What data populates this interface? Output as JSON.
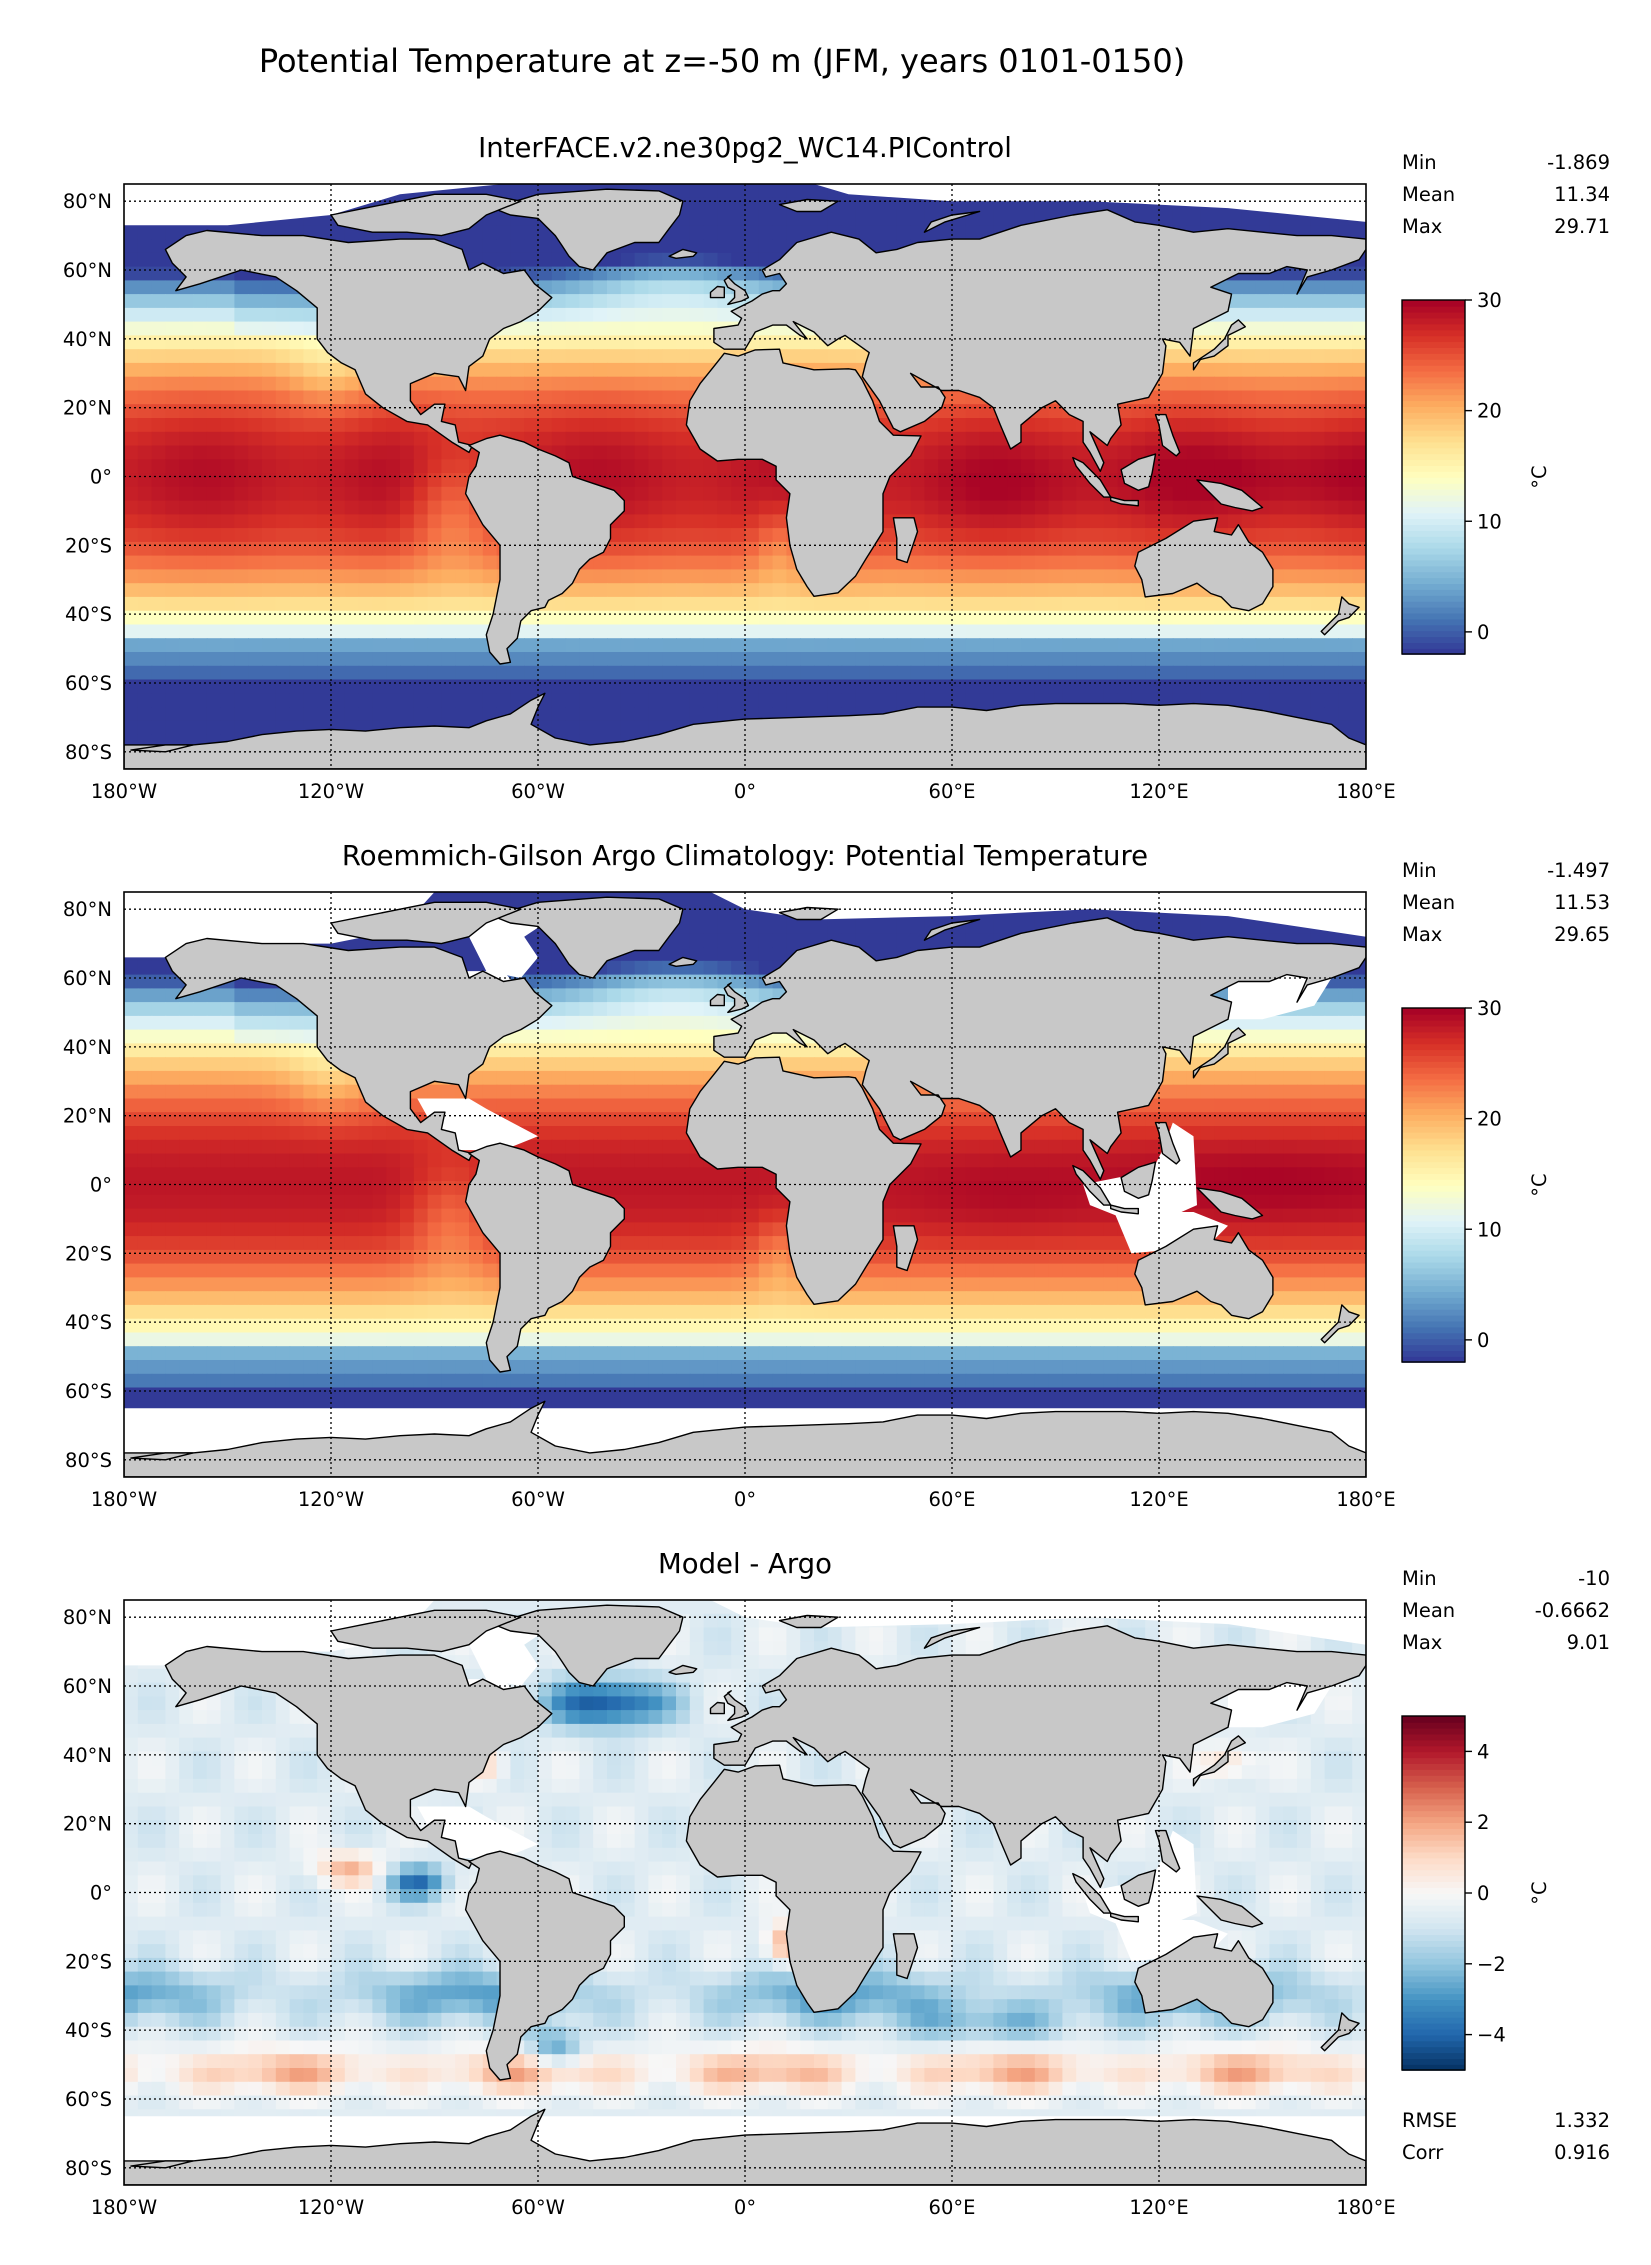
{
  "figure": {
    "title": "Potential Temperature at z=-50 m (JFM, years 0101-0150)"
  },
  "colors": {
    "land": "#c8c8c8",
    "no_data": "#ffffff",
    "cmap_temperature": [
      "#313695",
      "#4575b4",
      "#74add1",
      "#abd9e9",
      "#e0f3f8",
      "#ffffbf",
      "#fee090",
      "#fdae61",
      "#f46d43",
      "#d73027",
      "#a50026"
    ],
    "cmap_difference": [
      "#053061",
      "#2166ac",
      "#4393c3",
      "#92c5de",
      "#d1e5f0",
      "#f7f7f7",
      "#fddbc7",
      "#f4a582",
      "#d6604d",
      "#b2182b",
      "#67001f"
    ]
  },
  "chart_data": [
    {
      "type": "heatmap",
      "title": "InterFACE.v2.ne30pg2_WC14.PIControl",
      "x_ticks": [
        "180°W",
        "120°W",
        "60°W",
        "0°",
        "60°E",
        "120°E",
        "180°E"
      ],
      "y_ticks": [
        "80°N",
        "60°N",
        "40°N",
        "20°N",
        "0°",
        "20°S",
        "40°S",
        "60°S",
        "80°S"
      ],
      "xlim": [
        -180,
        180
      ],
      "ylim": [
        -85,
        85
      ],
      "grid": true,
      "stats": [
        {
          "label": "Min",
          "value": "-1.869"
        },
        {
          "label": "Mean",
          "value": "11.34"
        },
        {
          "label": "Max",
          "value": "29.71"
        }
      ],
      "colorbar": {
        "ticks": [
          "0",
          "10",
          "20",
          "30"
        ],
        "tick_values": [
          0,
          10,
          20,
          30
        ],
        "range": [
          -2,
          30
        ],
        "label": "°C",
        "cmap": "cmap_temperature"
      }
    },
    {
      "type": "heatmap",
      "title": "Roemmich-Gilson Argo Climatology: Potential Temperature",
      "x_ticks": [
        "180°W",
        "120°W",
        "60°W",
        "0°",
        "60°E",
        "120°E",
        "180°E"
      ],
      "y_ticks": [
        "80°N",
        "60°N",
        "40°N",
        "20°N",
        "0°",
        "20°S",
        "40°S",
        "60°S",
        "80°S"
      ],
      "xlim": [
        -180,
        180
      ],
      "ylim": [
        -85,
        85
      ],
      "grid": true,
      "stats": [
        {
          "label": "Min",
          "value": "-1.497"
        },
        {
          "label": "Mean",
          "value": "11.53"
        },
        {
          "label": "Max",
          "value": "29.65"
        }
      ],
      "colorbar": {
        "ticks": [
          "0",
          "10",
          "20",
          "30"
        ],
        "tick_values": [
          0,
          10,
          20,
          30
        ],
        "range": [
          -2,
          30
        ],
        "label": "°C",
        "cmap": "cmap_temperature"
      }
    },
    {
      "type": "heatmap",
      "title": "Model - Argo",
      "x_ticks": [
        "180°W",
        "120°W",
        "60°W",
        "0°",
        "60°E",
        "120°E",
        "180°E"
      ],
      "y_ticks": [
        "80°N",
        "60°N",
        "40°N",
        "20°N",
        "0°",
        "20°S",
        "40°S",
        "60°S",
        "80°S"
      ],
      "xlim": [
        -180,
        180
      ],
      "ylim": [
        -85,
        85
      ],
      "grid": true,
      "stats": [
        {
          "label": "Min",
          "value": "-10"
        },
        {
          "label": "Mean",
          "value": "-0.6662"
        },
        {
          "label": "Max",
          "value": "9.01"
        }
      ],
      "colorbar": {
        "ticks": [
          "−4",
          "−2",
          "0",
          "2",
          "4"
        ],
        "tick_values": [
          -4,
          -2,
          0,
          2,
          4
        ],
        "range": [
          -5,
          5
        ],
        "label": "°C",
        "cmap": "cmap_difference"
      },
      "metrics": [
        {
          "label": "RMSE",
          "value": "1.332"
        },
        {
          "label": "Corr",
          "value": "0.916"
        }
      ]
    }
  ]
}
